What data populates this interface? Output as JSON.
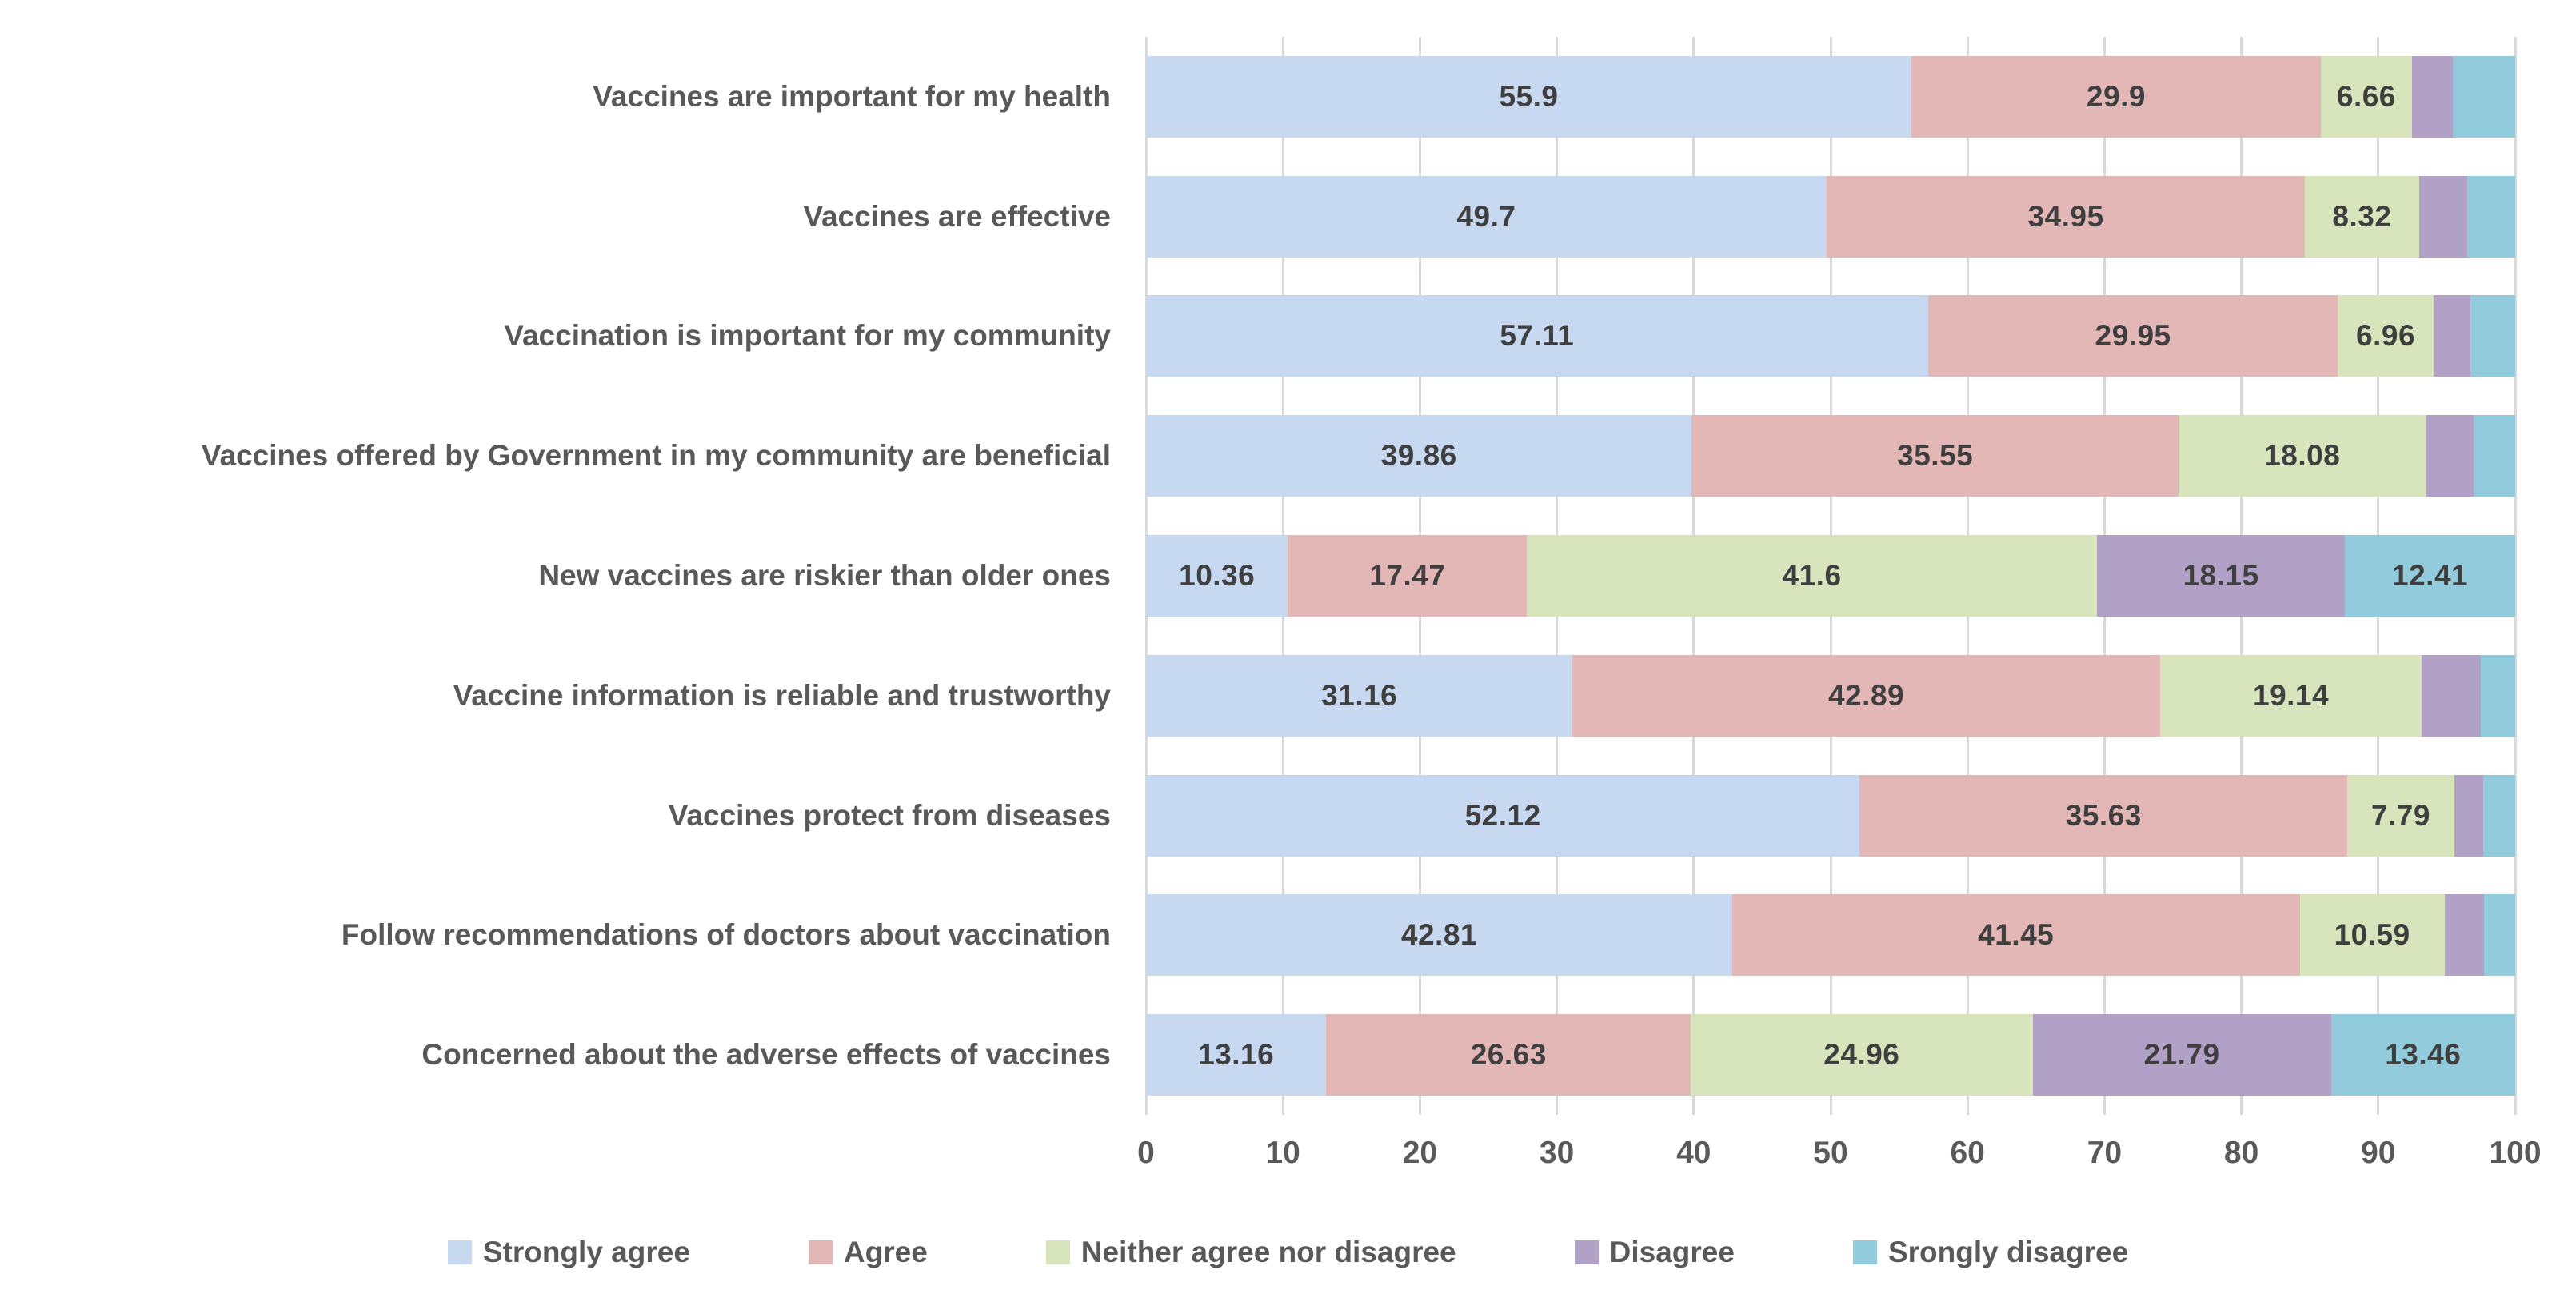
{
  "chart_data": {
    "type": "bar",
    "orientation": "horizontal",
    "stacked": true,
    "title": "",
    "xlabel": "",
    "ylabel": "",
    "xlim": [
      0,
      100
    ],
    "x_ticks": [
      "0",
      "10",
      "20",
      "30",
      "40",
      "50",
      "60",
      "70",
      "80",
      "90",
      "100"
    ],
    "grid": true,
    "legend_position": "bottom",
    "categories": [
      "Vaccines are important for my health",
      "Vaccines are effective",
      "Vaccination is important for my community",
      "Vaccines offered by Government in my community are beneficial",
      "New vaccines are riskier than older ones",
      "Vaccine information is reliable and trustworthy",
      "Vaccines protect from diseases",
      "Follow recommendations of doctors about vaccination",
      "Concerned about the adverse effects of vaccines"
    ],
    "series": [
      {
        "name": "Strongly agree",
        "color": "#c6d9f1",
        "values": [
          55.9,
          49.7,
          57.11,
          39.86,
          10.36,
          31.16,
          52.12,
          42.81,
          13.16
        ],
        "display_labels": [
          "55.9",
          "49.7",
          "57.11",
          "39.86",
          "10.36",
          "31.16",
          "52.12",
          "42.81",
          "13.16"
        ]
      },
      {
        "name": "Agree",
        "color": "#e3b7b6",
        "values": [
          29.9,
          34.95,
          29.95,
          35.55,
          17.47,
          42.89,
          35.63,
          41.45,
          26.63
        ],
        "display_labels": [
          "29.9",
          "34.95",
          "29.95",
          "35.55",
          "17.47",
          "42.89",
          "35.63",
          "41.45",
          "26.63"
        ]
      },
      {
        "name": "Neither agree nor disagree",
        "color": "#d7e4bc",
        "values": [
          6.66,
          8.32,
          6.96,
          18.08,
          41.6,
          19.14,
          7.79,
          10.59,
          24.96
        ],
        "display_labels": [
          "6.66",
          "8.32",
          "6.96",
          "18.08",
          "41.6",
          "19.14",
          "7.79",
          "10.59",
          "24.96"
        ]
      },
      {
        "name": "Disagree",
        "color": "#b2a1c7",
        "values": [
          3.0,
          3.5,
          2.7,
          3.5,
          18.15,
          4.3,
          2.1,
          2.9,
          21.79
        ],
        "display_labels": [
          "",
          "",
          "",
          "",
          "18.15",
          "",
          "",
          "",
          "21.79"
        ]
      },
      {
        "name": "Srongly disagree",
        "color": "#92cbdb",
        "values": [
          4.54,
          3.53,
          3.28,
          3.01,
          12.41,
          2.51,
          2.36,
          2.25,
          13.46
        ],
        "display_labels": [
          "",
          "",
          "",
          "",
          "12.41",
          "",
          "",
          "",
          "13.46"
        ]
      }
    ]
  },
  "colors": {
    "background": "#ffffff",
    "gridline": "#d9d9d9",
    "data_label": "#3f3f3f",
    "axis_label": "#595959",
    "category_label": "#595959",
    "legend_label": "#595959"
  }
}
